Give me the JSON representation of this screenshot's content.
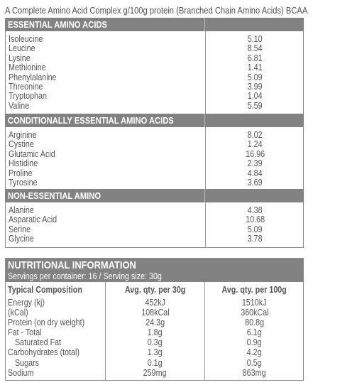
{
  "caption": "A Complete Amino Acid Complex g/100g protein (Branched Chain Amino Acids) BCAA",
  "sections": [
    {
      "heading": "ESSENTIAL AMINO ACIDS",
      "rows": [
        {
          "name": "Isoleucine",
          "value": "5.10"
        },
        {
          "name": "Leucine",
          "value": "8.54"
        },
        {
          "name": "Lysine",
          "value": "6.81"
        },
        {
          "name": "Methionine",
          "value": "1.41"
        },
        {
          "name": "Phenylalanine",
          "value": "5.09"
        },
        {
          "name": "Threonine",
          "value": "3.99"
        },
        {
          "name": "Tryptophan",
          "value": "1.04"
        },
        {
          "name": "Valine",
          "value": "5.59"
        }
      ]
    },
    {
      "heading": "CONDITIONALLY ESSENTIAL AMINO ACIDS",
      "rows": [
        {
          "name": "Arginine",
          "value": "8.02"
        },
        {
          "name": "Cystine",
          "value": "1.24"
        },
        {
          "name": "Glutamic Acid",
          "value": "16.96"
        },
        {
          "name": "Histidine",
          "value": "2.39"
        },
        {
          "name": "Proline",
          "value": "4.84"
        },
        {
          "name": "Tyrosine",
          "value": "3.69"
        }
      ]
    },
    {
      "heading": "NON-ESSENTIAL AMINO",
      "rows": [
        {
          "name": "Alanine",
          "value": "4.38"
        },
        {
          "name": "Asparatic Acid",
          "value": "10.68"
        },
        {
          "name": "Serine",
          "value": "5.09"
        },
        {
          "name": "Glycine",
          "value": "3.78"
        }
      ]
    }
  ],
  "nutrition": {
    "title": "NUTRITIONAL INFORMATION",
    "subtitle": "Servings per container: 16 / Serving size: 30g",
    "col_headers": [
      "Typical Composition",
      "Avg. qty. per 30g",
      "Avg. qty. per 100g"
    ],
    "rows": [
      {
        "name": "Energy (kj)",
        "per_serving": "452kJ",
        "per_100g": "1510kJ"
      },
      {
        "name": "(kCal)",
        "per_serving": "108kCal",
        "per_100g": "360kCal"
      },
      {
        "name": "Protein (on dry weight)",
        "per_serving": "24.3g",
        "per_100g": "80.8g"
      },
      {
        "name": "Fat - Total",
        "per_serving": "1.8g",
        "per_100g": "6.1g"
      },
      {
        "name": "Saturated Fat",
        "per_serving": "0.3g",
        "per_100g": "0.9g"
      },
      {
        "name": "Carbohydrates (total)",
        "per_serving": "1.3g",
        "per_100g": "4.2g"
      },
      {
        "name": "Sugars",
        "per_serving": "0.1g",
        "per_100g": "0.5g"
      },
      {
        "name": "Sodium",
        "per_serving": "259mg",
        "per_100g": "863mg"
      }
    ]
  },
  "colors": {
    "header_bg": "#828282",
    "text": "#555555",
    "border": "#8c8c8c"
  }
}
